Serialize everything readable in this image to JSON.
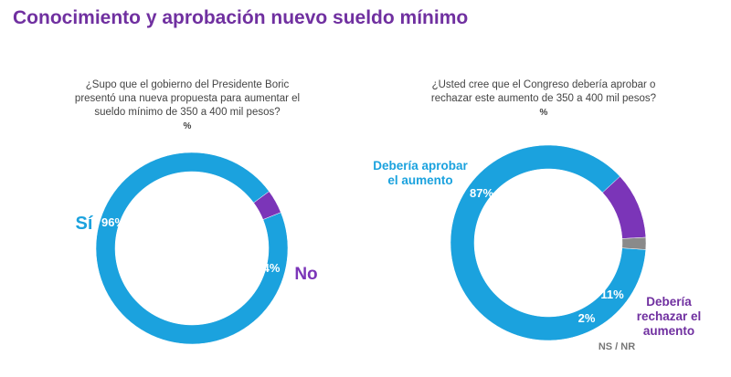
{
  "title": "Conocimiento y aprobación nuevo sueldo mínimo",
  "colors": {
    "title": "#7030a0",
    "blue": "#1ba2de",
    "purple": "#7b35b8",
    "gray": "#8a8a8a"
  },
  "questions": [
    {
      "lines": [
        "¿Supo que el gobierno del Presidente Boric",
        "presentó una nueva propuesta para aumentar el",
        "sueldo mínimo de 350 a 400 mil pesos?"
      ],
      "unit": "%"
    },
    {
      "lines": [
        "¿Usted cree que el Congreso debería aprobar o",
        "rechazar este aumento de 350 a 400 mil pesos?"
      ],
      "unit": "%"
    }
  ],
  "chart_data": [
    {
      "type": "pie",
      "donut": true,
      "slices": [
        {
          "label": "Sí",
          "value": 96,
          "value_label": "96%",
          "color": "#1ba2de"
        },
        {
          "label": "No",
          "value": 4,
          "value_label": "4%",
          "color": "#7b35b8"
        }
      ]
    },
    {
      "type": "pie",
      "donut": true,
      "slices": [
        {
          "label": "Debería aprobar el aumento",
          "value": 87,
          "value_label": "87%",
          "color": "#1ba2de"
        },
        {
          "label": "Debería rechazar el aumento",
          "value": 11,
          "value_label": "11%",
          "color": "#7b35b8"
        },
        {
          "label": "NS / NR",
          "value": 2,
          "value_label": "2%",
          "color": "#8a8a8a"
        }
      ]
    }
  ]
}
